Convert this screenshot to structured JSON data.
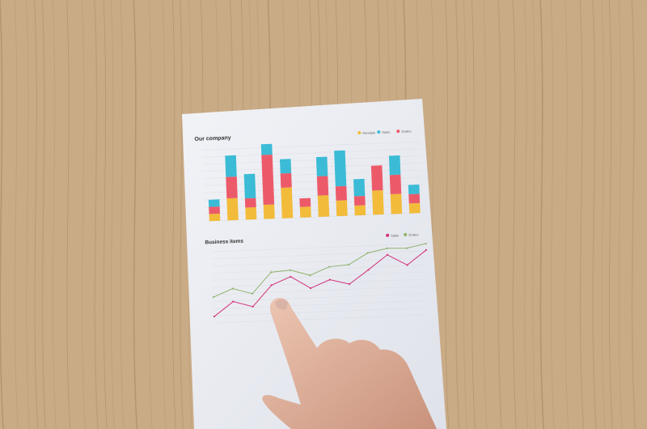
{
  "scene": {
    "background": "wooden table",
    "colors": {
      "wood": "#c9ab86",
      "wood_dark": "#a88863",
      "paper": "#eef0f4",
      "skin": "#e2b9a4"
    }
  },
  "chart_data": [
    {
      "type": "bar",
      "stacked": true,
      "title": "Our company",
      "legend": [
        "Receipts",
        "Sales",
        "Orders"
      ],
      "legend_placement": "top-right",
      "grid": true,
      "ylim": [
        0,
        100
      ],
      "series": [
        {
          "name": "Receipts",
          "color": "#f2bb3a",
          "values": [
            10,
            31,
            17,
            20,
            43,
            15,
            30,
            22,
            14,
            34,
            28,
            14
          ]
        },
        {
          "name": "Orders",
          "color": "#ec5a6a",
          "values": [
            10,
            30,
            13,
            70,
            20,
            12,
            27,
            20,
            13,
            35,
            27,
            13
          ]
        },
        {
          "name": "Sales",
          "color": "#3bbbd6",
          "values": [
            10,
            30,
            34,
            15,
            20,
            0,
            27,
            50,
            24,
            0,
            27,
            13
          ]
        }
      ]
    },
    {
      "type": "line",
      "title": "Business items",
      "legend": [
        "Sales",
        "Orders"
      ],
      "legend_placement": "top-right",
      "grid": true,
      "ylim": [
        0,
        110
      ],
      "series": [
        {
          "name": "Sales",
          "color": "#d1307a",
          "values": [
            10,
            32,
            23,
            55,
            67,
            48,
            60,
            52,
            73,
            95,
            78,
            100
          ]
        },
        {
          "name": "Orders",
          "color": "#8fb36a",
          "values": [
            40,
            52,
            43,
            75,
            77,
            68,
            80,
            82,
            99,
            105,
            104,
            110
          ]
        }
      ]
    }
  ]
}
